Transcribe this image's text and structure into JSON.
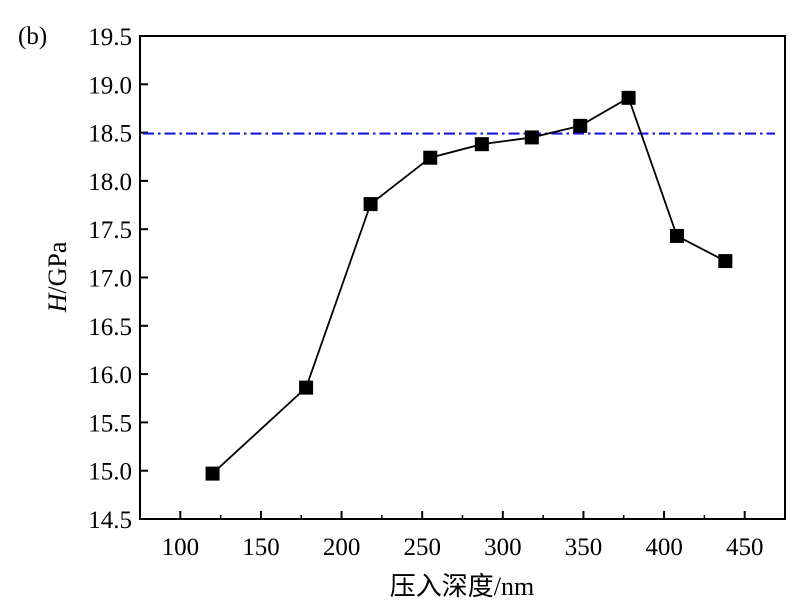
{
  "chart_data": {
    "type": "line",
    "panel_label": "(b)",
    "xlabel": "压入深度/nm",
    "ylabel_italic": "H",
    "ylabel_rest": "/GPa",
    "xlim": [
      75,
      475
    ],
    "ylim": [
      14.5,
      19.5
    ],
    "x_ticks": [
      100,
      150,
      200,
      250,
      300,
      350,
      400,
      450
    ],
    "x_tick_labels": [
      "100",
      "150",
      "200",
      "250",
      "300",
      "350",
      "400",
      "450"
    ],
    "y_ticks": [
      14.5,
      15.0,
      15.5,
      16.0,
      16.5,
      17.0,
      17.5,
      18.0,
      18.5,
      19.0,
      19.5
    ],
    "y_tick_labels": [
      "14.5",
      "15.0",
      "15.5",
      "16.0",
      "16.5",
      "17.0",
      "17.5",
      "18.0",
      "18.5",
      "19.0",
      "19.5"
    ],
    "series": [
      {
        "marker": "square",
        "color": "#000000",
        "x": [
          120,
          178,
          218,
          255,
          287,
          318,
          348,
          378,
          408,
          438
        ],
        "y": [
          14.97,
          15.86,
          17.76,
          18.24,
          18.38,
          18.45,
          18.57,
          18.86,
          17.43,
          17.17
        ]
      }
    ],
    "reference_line": {
      "y": 18.49,
      "color": "#1a1ad6",
      "style": "dash-dot"
    },
    "grid": false,
    "legend": "none"
  }
}
